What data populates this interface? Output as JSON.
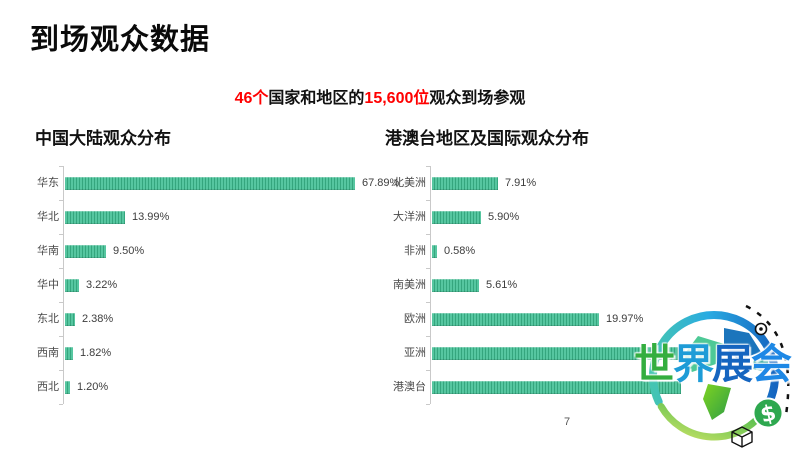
{
  "slide": {
    "title": "到场观众数据",
    "subtitle_parts": [
      {
        "text": "46个",
        "highlight": true
      },
      {
        "text": "国家和地区的",
        "highlight": false
      },
      {
        "text": "15,600位",
        "highlight": true
      },
      {
        "text": "观众到场参观",
        "highlight": false
      }
    ],
    "page_number": "7"
  },
  "colors": {
    "accent_red": "#ff0000",
    "bar_green": "#56c6a0",
    "bar_stripe": "#35a67e",
    "axis_gray": "#c9c9c9",
    "logo_green": "#34ae3f",
    "logo_blue": "#1565c0"
  },
  "chart_data": [
    {
      "type": "bar",
      "orientation": "horizontal",
      "title": "中国大陆观众分布",
      "categories": [
        "华东",
        "华北",
        "华南",
        "华中",
        "东北",
        "西南",
        "西北"
      ],
      "values": [
        67.89,
        13.99,
        9.5,
        3.22,
        2.38,
        1.82,
        1.2
      ],
      "labels": [
        "67.89%",
        "13.99%",
        "9.50%",
        "3.22%",
        "2.38%",
        "1.82%",
        "1.20%"
      ],
      "label_visible": [
        true,
        true,
        true,
        true,
        true,
        true,
        true
      ],
      "xlim": [
        0,
        75
      ],
      "grid": false,
      "legend": false
    },
    {
      "type": "bar",
      "orientation": "horizontal",
      "title": "港澳台地区及国际观众分布",
      "categories": [
        "北美洲",
        "大洋洲",
        "非洲",
        "南美洲",
        "欧洲",
        "亚洲",
        "港澳台"
      ],
      "values": [
        7.91,
        5.9,
        0.58,
        5.61,
        19.97,
        30.2,
        29.8
      ],
      "labels": [
        "7.91%",
        "5.90%",
        "0.58%",
        "5.61%",
        "19.97%",
        "",
        ""
      ],
      "label_visible": [
        true,
        true,
        true,
        true,
        true,
        false,
        false
      ],
      "hidden_by_watermark": [
        "亚洲",
        "港澳台"
      ],
      "xlim": [
        0,
        35
      ],
      "grid": false,
      "legend": false
    }
  ],
  "watermark": {
    "chars": [
      "世",
      "界",
      "展",
      "会"
    ],
    "char_colors": [
      "#34ae3f",
      "#1e9cd7",
      "#1565c0",
      "#1e88e5"
    ],
    "dollar_symbol": "$"
  }
}
